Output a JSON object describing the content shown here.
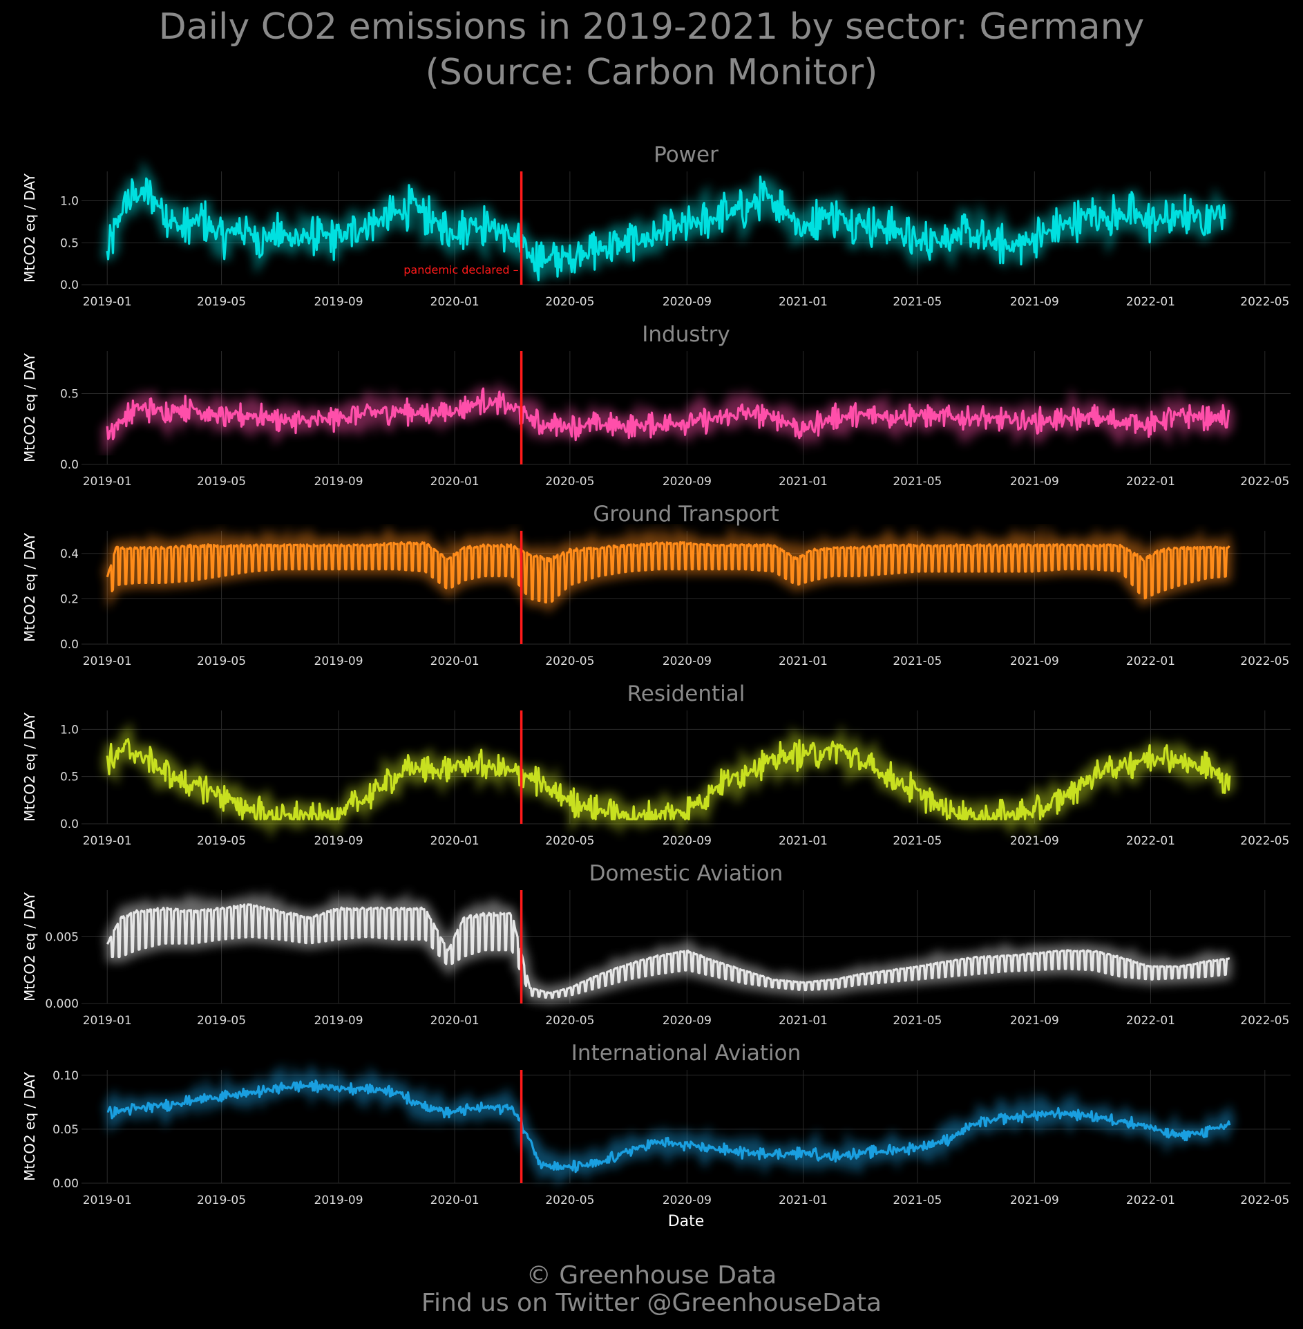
{
  "title": {
    "line1": "Daily CO2 emissions in 2019-2021 by sector: Germany",
    "line2": "(Source: Carbon Monitor)"
  },
  "footer": {
    "line1": "© Greenhouse Data",
    "line2": "Find us on Twitter @GreenhouseData"
  },
  "colors": {
    "background": "#000000",
    "grid": "#2a2a2a",
    "tick_text": "#dddddd",
    "title_text": "#8a8a8a",
    "pandemic_line": "#ff1a1a"
  },
  "chart_data": [
    {
      "type": "line",
      "title": "Power",
      "color": "#00e0e0",
      "ylabel": "MtCO2 eq / DAY",
      "xlabel": "",
      "ylim": [
        0,
        1.35
      ],
      "yticks": [
        0.0,
        0.5,
        1.0
      ],
      "ytick_labels": [
        "0.0",
        "0.5",
        "1.0"
      ],
      "xticks": [
        "2019-01",
        "2019-05",
        "2019-09",
        "2020-01",
        "2020-05",
        "2020-09",
        "2021-01",
        "2021-05",
        "2021-09",
        "2022-01",
        "2022-05"
      ],
      "annotation": {
        "date": "2020-03-11",
        "label": "pandemic declared"
      },
      "series": [
        {
          "x": [
            "2019-01-01",
            "2019-01-20",
            "2019-02-10",
            "2019-03-01",
            "2019-03-20",
            "2019-04-10",
            "2019-05-01",
            "2019-05-20",
            "2019-06-10",
            "2019-07-01",
            "2019-07-20",
            "2019-08-10",
            "2019-09-01",
            "2019-09-20",
            "2019-10-10",
            "2019-11-01",
            "2019-11-20",
            "2019-12-10",
            "2020-01-01",
            "2020-01-20",
            "2020-02-10",
            "2020-03-01",
            "2020-03-20",
            "2020-04-10",
            "2020-05-01",
            "2020-05-20",
            "2020-06-10",
            "2020-07-01",
            "2020-07-20",
            "2020-08-10",
            "2020-09-01",
            "2020-09-20",
            "2020-10-10",
            "2020-11-01",
            "2020-11-20",
            "2020-12-10",
            "2021-01-01",
            "2021-01-20",
            "2021-02-10",
            "2021-03-01",
            "2021-03-20",
            "2021-04-10",
            "2021-05-01",
            "2021-05-20",
            "2021-06-10",
            "2021-07-01",
            "2021-07-20",
            "2021-08-10",
            "2021-09-01",
            "2021-09-20",
            "2021-10-10",
            "2021-11-01",
            "2021-11-20",
            "2021-12-10",
            "2022-01-01",
            "2022-01-20",
            "2022-02-10",
            "2022-03-01",
            "2022-03-20"
          ],
          "values": [
            0.35,
            1.0,
            1.1,
            0.9,
            0.65,
            0.8,
            0.55,
            0.7,
            0.55,
            0.6,
            0.55,
            0.6,
            0.55,
            0.65,
            0.75,
            0.85,
            0.95,
            0.75,
            0.6,
            0.75,
            0.7,
            0.55,
            0.35,
            0.3,
            0.35,
            0.4,
            0.45,
            0.5,
            0.55,
            0.65,
            0.7,
            0.75,
            0.85,
            0.9,
            1.05,
            0.95,
            0.65,
            0.85,
            0.8,
            0.75,
            0.7,
            0.65,
            0.5,
            0.55,
            0.6,
            0.55,
            0.5,
            0.45,
            0.55,
            0.65,
            0.75,
            0.85,
            0.8,
            0.85,
            0.75,
            0.8,
            0.85,
            0.8,
            0.9
          ],
          "amplitude": 0.28
        }
      ]
    },
    {
      "type": "line",
      "title": "Industry",
      "color": "#ff4faa",
      "ylabel": "MtCO2 eq / DAY",
      "xlabel": "",
      "ylim": [
        0,
        0.8
      ],
      "yticks": [
        0.0,
        0.5
      ],
      "ytick_labels": [
        "0.0",
        "0.5"
      ],
      "xticks": [
        "2019-01",
        "2019-05",
        "2019-09",
        "2020-01",
        "2020-05",
        "2020-09",
        "2021-01",
        "2021-05",
        "2021-09",
        "2022-01",
        "2022-05"
      ],
      "annotation": {
        "date": "2020-03-11",
        "label": ""
      },
      "series": [
        {
          "x": [
            "2019-01-01",
            "2019-02-01",
            "2019-03-01",
            "2019-04-01",
            "2019-05-01",
            "2019-06-01",
            "2019-07-01",
            "2019-08-01",
            "2019-09-01",
            "2019-10-01",
            "2019-11-01",
            "2019-12-01",
            "2020-01-01",
            "2020-02-01",
            "2020-03-01",
            "2020-04-01",
            "2020-05-01",
            "2020-06-01",
            "2020-07-01",
            "2020-08-01",
            "2020-09-01",
            "2020-10-01",
            "2020-11-01",
            "2020-12-01",
            "2021-01-01",
            "2021-02-01",
            "2021-03-01",
            "2021-04-01",
            "2021-05-01",
            "2021-06-01",
            "2021-07-01",
            "2021-08-01",
            "2021-09-01",
            "2021-10-01",
            "2021-11-01",
            "2021-12-01",
            "2022-01-01",
            "2022-02-01",
            "2022-03-01",
            "2022-03-25"
          ],
          "values": [
            0.22,
            0.4,
            0.38,
            0.4,
            0.33,
            0.35,
            0.32,
            0.3,
            0.33,
            0.36,
            0.38,
            0.36,
            0.38,
            0.45,
            0.4,
            0.28,
            0.27,
            0.28,
            0.27,
            0.28,
            0.3,
            0.32,
            0.36,
            0.34,
            0.25,
            0.33,
            0.35,
            0.34,
            0.35,
            0.33,
            0.33,
            0.31,
            0.31,
            0.32,
            0.33,
            0.3,
            0.28,
            0.35,
            0.33,
            0.33
          ],
          "amplitude": 0.1
        }
      ]
    },
    {
      "type": "line",
      "title": "Ground Transport",
      "color": "#ff8c1a",
      "ylabel": "MtCO2 eq / DAY",
      "xlabel": "",
      "ylim": [
        0,
        0.5
      ],
      "yticks": [
        0.0,
        0.2,
        0.4
      ],
      "ytick_labels": [
        "0.0",
        "0.2",
        "0.4"
      ],
      "xticks": [
        "2019-01",
        "2019-05",
        "2019-09",
        "2020-01",
        "2020-05",
        "2020-09",
        "2021-01",
        "2021-05",
        "2021-09",
        "2022-01",
        "2022-05"
      ],
      "annotation": {
        "date": "2020-03-11",
        "label": ""
      },
      "series": [
        {
          "x": [
            "2019-01-01",
            "2019-01-10",
            "2019-02-01",
            "2019-03-01",
            "2019-04-01",
            "2019-05-01",
            "2019-06-01",
            "2019-07-01",
            "2019-08-01",
            "2019-09-01",
            "2019-10-01",
            "2019-11-01",
            "2019-12-01",
            "2019-12-25",
            "2020-01-10",
            "2020-02-01",
            "2020-03-01",
            "2020-03-20",
            "2020-04-10",
            "2020-05-01",
            "2020-06-01",
            "2020-07-01",
            "2020-08-01",
            "2020-09-01",
            "2020-10-01",
            "2020-11-01",
            "2020-12-01",
            "2020-12-25",
            "2021-01-10",
            "2021-02-01",
            "2021-03-01",
            "2021-04-01",
            "2021-05-01",
            "2021-06-01",
            "2021-07-01",
            "2021-08-01",
            "2021-09-01",
            "2021-10-01",
            "2021-11-01",
            "2021-12-01",
            "2021-12-25",
            "2022-01-10",
            "2022-02-01",
            "2022-03-01",
            "2022-03-25"
          ],
          "highs": [
            0.3,
            0.43,
            0.43,
            0.43,
            0.44,
            0.44,
            0.44,
            0.44,
            0.44,
            0.44,
            0.44,
            0.45,
            0.45,
            0.38,
            0.43,
            0.44,
            0.44,
            0.4,
            0.38,
            0.42,
            0.43,
            0.44,
            0.45,
            0.45,
            0.44,
            0.44,
            0.44,
            0.38,
            0.42,
            0.43,
            0.43,
            0.44,
            0.44,
            0.44,
            0.44,
            0.44,
            0.44,
            0.44,
            0.44,
            0.44,
            0.38,
            0.42,
            0.43,
            0.43,
            0.43
          ],
          "lows": [
            0.2,
            0.26,
            0.27,
            0.27,
            0.28,
            0.3,
            0.32,
            0.33,
            0.33,
            0.33,
            0.33,
            0.33,
            0.32,
            0.24,
            0.28,
            0.3,
            0.3,
            0.2,
            0.18,
            0.26,
            0.3,
            0.32,
            0.33,
            0.33,
            0.33,
            0.33,
            0.32,
            0.26,
            0.28,
            0.3,
            0.3,
            0.31,
            0.32,
            0.32,
            0.32,
            0.32,
            0.32,
            0.33,
            0.33,
            0.32,
            0.2,
            0.23,
            0.26,
            0.29,
            0.3
          ]
        }
      ]
    },
    {
      "type": "line",
      "title": "Residential",
      "color": "#c8e020",
      "ylabel": "MtCO2 eq / DAY",
      "xlabel": "",
      "ylim": [
        0,
        1.2
      ],
      "yticks": [
        0.0,
        0.5,
        1.0
      ],
      "ytick_labels": [
        "0.0",
        "0.5",
        "1.0"
      ],
      "xticks": [
        "2019-01",
        "2019-05",
        "2019-09",
        "2020-01",
        "2020-05",
        "2020-09",
        "2021-01",
        "2021-05",
        "2021-09",
        "2022-01",
        "2022-05"
      ],
      "annotation": {
        "date": "2020-03-11",
        "label": ""
      },
      "series": [
        {
          "x": [
            "2019-01-01",
            "2019-01-20",
            "2019-02-10",
            "2019-03-01",
            "2019-03-20",
            "2019-04-10",
            "2019-05-01",
            "2019-05-20",
            "2019-06-10",
            "2019-07-01",
            "2019-07-20",
            "2019-08-10",
            "2019-09-01",
            "2019-09-20",
            "2019-10-10",
            "2019-11-01",
            "2019-11-20",
            "2019-12-10",
            "2020-01-01",
            "2020-01-20",
            "2020-02-10",
            "2020-03-01",
            "2020-03-20",
            "2020-04-10",
            "2020-05-01",
            "2020-05-20",
            "2020-06-10",
            "2020-07-01",
            "2020-07-20",
            "2020-08-10",
            "2020-09-01",
            "2020-09-20",
            "2020-10-10",
            "2020-11-01",
            "2020-11-20",
            "2020-12-10",
            "2021-01-01",
            "2021-01-20",
            "2021-02-10",
            "2021-03-01",
            "2021-03-20",
            "2021-04-10",
            "2021-05-01",
            "2021-05-20",
            "2021-06-10",
            "2021-07-01",
            "2021-07-20",
            "2021-08-10",
            "2021-09-01",
            "2021-09-20",
            "2021-10-10",
            "2021-11-01",
            "2021-11-20",
            "2021-12-10",
            "2022-01-01",
            "2022-01-20",
            "2022-02-10",
            "2022-03-01",
            "2022-03-25"
          ],
          "values": [
            0.65,
            0.8,
            0.7,
            0.55,
            0.45,
            0.4,
            0.3,
            0.2,
            0.12,
            0.08,
            0.08,
            0.08,
            0.1,
            0.2,
            0.35,
            0.5,
            0.6,
            0.55,
            0.6,
            0.62,
            0.6,
            0.55,
            0.5,
            0.35,
            0.25,
            0.18,
            0.12,
            0.08,
            0.08,
            0.1,
            0.15,
            0.3,
            0.45,
            0.55,
            0.65,
            0.7,
            0.75,
            0.75,
            0.8,
            0.65,
            0.55,
            0.45,
            0.35,
            0.2,
            0.12,
            0.08,
            0.08,
            0.1,
            0.12,
            0.2,
            0.35,
            0.5,
            0.6,
            0.65,
            0.7,
            0.72,
            0.62,
            0.6,
            0.45
          ],
          "amplitude": 0.18
        }
      ]
    },
    {
      "type": "line",
      "title": "Domestic Aviation",
      "color": "#e6e6e6",
      "ylabel": "MtCO2 eq / DAY",
      "xlabel": "",
      "ylim": [
        0,
        0.0085
      ],
      "yticks": [
        0.0,
        0.005
      ],
      "ytick_labels": [
        "0.000",
        "0.005"
      ],
      "xticks": [
        "2019-01",
        "2019-05",
        "2019-09",
        "2020-01",
        "2020-05",
        "2020-09",
        "2021-01",
        "2021-05",
        "2021-09",
        "2022-01",
        "2022-05"
      ],
      "annotation": {
        "date": "2020-03-11",
        "label": ""
      },
      "series": [
        {
          "x": [
            "2019-01-01",
            "2019-01-15",
            "2019-02-01",
            "2019-03-01",
            "2019-04-01",
            "2019-05-01",
            "2019-06-01",
            "2019-07-01",
            "2019-08-01",
            "2019-09-01",
            "2019-10-01",
            "2019-11-01",
            "2019-12-01",
            "2019-12-25",
            "2020-01-10",
            "2020-02-01",
            "2020-03-01",
            "2020-03-20",
            "2020-04-10",
            "2020-05-01",
            "2020-06-01",
            "2020-07-01",
            "2020-08-01",
            "2020-09-01",
            "2020-10-01",
            "2020-11-01",
            "2020-12-01",
            "2021-01-01",
            "2021-02-01",
            "2021-03-01",
            "2021-04-01",
            "2021-05-01",
            "2021-06-01",
            "2021-07-01",
            "2021-08-01",
            "2021-09-01",
            "2021-10-01",
            "2021-11-01",
            "2021-12-01",
            "2022-01-01",
            "2022-02-01",
            "2022-03-01",
            "2022-03-25"
          ],
          "highs": [
            0.0045,
            0.0065,
            0.007,
            0.0072,
            0.007,
            0.0072,
            0.0075,
            0.007,
            0.0065,
            0.0072,
            0.0072,
            0.0072,
            0.0072,
            0.004,
            0.0065,
            0.0068,
            0.0068,
            0.0012,
            0.0008,
            0.0012,
            0.0022,
            0.003,
            0.0036,
            0.004,
            0.0032,
            0.0025,
            0.0018,
            0.0016,
            0.0018,
            0.0022,
            0.0025,
            0.0028,
            0.0032,
            0.0035,
            0.0036,
            0.0038,
            0.004,
            0.004,
            0.0035,
            0.0028,
            0.0028,
            0.0032,
            0.0034
          ],
          "lows": [
            0.0035,
            0.0035,
            0.004,
            0.0045,
            0.0045,
            0.0048,
            0.005,
            0.0048,
            0.0045,
            0.0048,
            0.005,
            0.0048,
            0.0048,
            0.0028,
            0.0035,
            0.004,
            0.004,
            0.0006,
            0.0004,
            0.0006,
            0.0012,
            0.0018,
            0.0022,
            0.0025,
            0.002,
            0.0015,
            0.0012,
            0.001,
            0.0011,
            0.0014,
            0.0016,
            0.0018,
            0.002,
            0.0022,
            0.0024,
            0.0025,
            0.0026,
            0.0025,
            0.002,
            0.0018,
            0.0019,
            0.002,
            0.0022
          ]
        }
      ]
    },
    {
      "type": "line",
      "title": "International Aviation",
      "color": "#1a9fe0",
      "ylabel": "MtCO2 eq / DAY",
      "xlabel": "Date",
      "ylim": [
        0,
        0.105
      ],
      "yticks": [
        0.0,
        0.05,
        0.1
      ],
      "ytick_labels": [
        "0.00",
        "0.05",
        "0.10"
      ],
      "xticks": [
        "2019-01",
        "2019-05",
        "2019-09",
        "2020-01",
        "2020-05",
        "2020-09",
        "2021-01",
        "2021-05",
        "2021-09",
        "2022-01",
        "2022-05"
      ],
      "annotation": {
        "date": "2020-03-11",
        "label": ""
      },
      "series": [
        {
          "x": [
            "2019-01-01",
            "2019-01-20",
            "2019-02-10",
            "2019-03-01",
            "2019-03-20",
            "2019-04-10",
            "2019-05-01",
            "2019-05-20",
            "2019-06-10",
            "2019-07-01",
            "2019-07-20",
            "2019-08-10",
            "2019-09-01",
            "2019-09-20",
            "2019-10-10",
            "2019-11-01",
            "2019-11-20",
            "2019-12-10",
            "2019-12-25",
            "2020-01-10",
            "2020-02-01",
            "2020-03-01",
            "2020-03-20",
            "2020-04-01",
            "2020-04-15",
            "2020-05-01",
            "2020-06-01",
            "2020-07-01",
            "2020-08-01",
            "2020-09-01",
            "2020-10-01",
            "2020-11-01",
            "2020-12-01",
            "2021-01-01",
            "2021-02-01",
            "2021-03-01",
            "2021-04-01",
            "2021-05-01",
            "2021-06-01",
            "2021-07-01",
            "2021-08-01",
            "2021-09-01",
            "2021-10-01",
            "2021-11-01",
            "2021-12-01",
            "2022-01-01",
            "2022-01-20",
            "2022-02-10",
            "2022-03-01",
            "2022-03-25"
          ],
          "values": [
            0.065,
            0.068,
            0.07,
            0.072,
            0.075,
            0.078,
            0.08,
            0.082,
            0.085,
            0.088,
            0.09,
            0.09,
            0.088,
            0.088,
            0.087,
            0.085,
            0.075,
            0.07,
            0.065,
            0.068,
            0.07,
            0.07,
            0.04,
            0.018,
            0.015,
            0.015,
            0.018,
            0.03,
            0.038,
            0.035,
            0.032,
            0.028,
            0.027,
            0.028,
            0.025,
            0.028,
            0.03,
            0.033,
            0.04,
            0.055,
            0.06,
            0.063,
            0.065,
            0.062,
            0.058,
            0.052,
            0.045,
            0.045,
            0.048,
            0.055
          ],
          "amplitude": 0.006
        }
      ]
    }
  ]
}
